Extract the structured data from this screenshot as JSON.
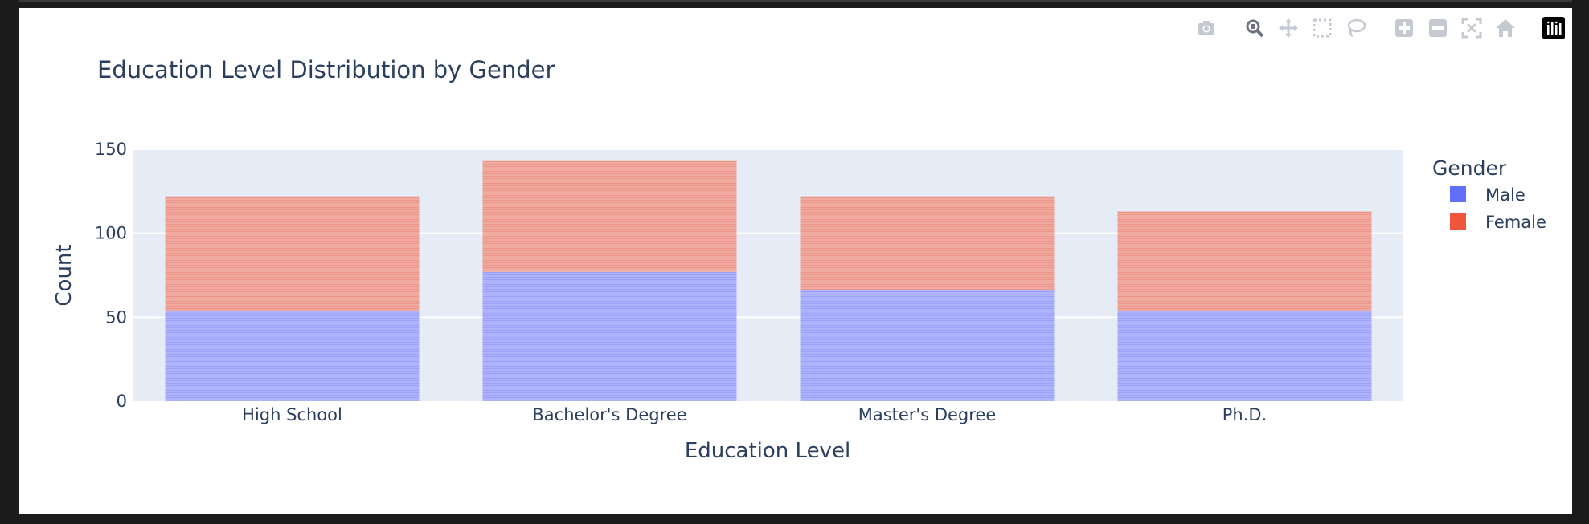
{
  "modebar": {
    "buttons": [
      {
        "name": "camera-icon",
        "label": "Download plot as a png"
      },
      {
        "name": "zoom-icon",
        "label": "Zoom"
      },
      {
        "name": "pan-icon",
        "label": "Pan"
      },
      {
        "name": "box-select-icon",
        "label": "Box Select"
      },
      {
        "name": "lasso-select-icon",
        "label": "Lasso Select"
      },
      {
        "name": "zoom-in-icon",
        "label": "Zoom in"
      },
      {
        "name": "zoom-out-icon",
        "label": "Zoom out"
      },
      {
        "name": "autoscale-icon",
        "label": "Autoscale"
      },
      {
        "name": "reset-axes-icon",
        "label": "Reset axes"
      },
      {
        "name": "plotly-logo-icon",
        "label": "Produced with Plotly"
      }
    ]
  },
  "chart_data": {
    "type": "bar",
    "barmode": "stack",
    "title": "Education Level Distribution by Gender",
    "xlabel": "Education Level",
    "ylabel": "Count",
    "categories": [
      "High School",
      "Bachelor's Degree",
      "Master's Degree",
      "Ph.D."
    ],
    "series": [
      {
        "name": "Male",
        "values": [
          54,
          77,
          66,
          54
        ],
        "color": "#636efa"
      },
      {
        "name": "Female",
        "values": [
          68,
          66,
          56,
          59
        ],
        "color": "#ef553b"
      }
    ],
    "ylim": [
      0,
      150
    ],
    "yticks": [
      0,
      50,
      100,
      150
    ],
    "grid": true,
    "legend": {
      "title": "Gender",
      "placement": "right"
    },
    "plot_bg": "#e5ecf6"
  }
}
